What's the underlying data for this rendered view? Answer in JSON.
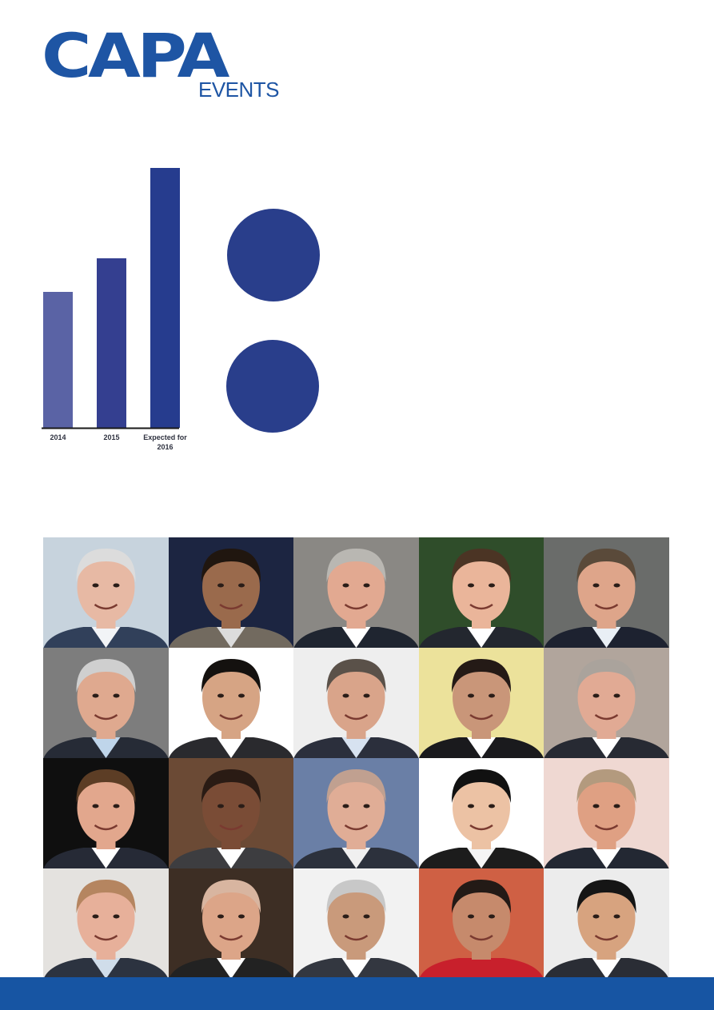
{
  "logo": {
    "main": "CAPA",
    "sub": "EVENTS",
    "color": "#1e55a4"
  },
  "chart_data": {
    "type": "bar",
    "categories": [
      "2014",
      "2015",
      "Expected for 2016"
    ],
    "category_lines": [
      [
        "2014"
      ],
      [
        "2015"
      ],
      [
        "Expected for",
        "2016"
      ]
    ],
    "values": [
      170,
      212,
      325
    ],
    "colors": [
      "#5a63a5",
      "#343f90",
      "#263c8e"
    ],
    "title": "",
    "xlabel": "",
    "ylabel": ""
  },
  "circles": {
    "color": "#293e8b"
  },
  "portraits": [
    {
      "bg": "#c7d3dd",
      "skin": "#e7b9a4",
      "hair": "#dcdcdc",
      "suit": "#31405a",
      "shirt": "#f2f4f7"
    },
    {
      "bg": "#1c2541",
      "skin": "#9a6a4c",
      "hair": "#20160f",
      "suit": "#726a5f",
      "shirt": "#dcdcdc"
    },
    {
      "bg": "#8a8884",
      "skin": "#e2a991",
      "hair": "#b9b7b2",
      "suit": "#1f2530",
      "shirt": "#ffffff"
    },
    {
      "bg": "#2f4d2a",
      "skin": "#eab59a",
      "hair": "#4b3424",
      "suit": "#23272f",
      "shirt": "#ffffff"
    },
    {
      "bg": "#6a6c6a",
      "skin": "#dea58a",
      "hair": "#5a4a3a",
      "suit": "#1d2230",
      "shirt": "#e9eff5"
    },
    {
      "bg": "#7d7d7d",
      "skin": "#dfa98f",
      "hair": "#cfcfcf",
      "suit": "#262b36",
      "shirt": "#bfd5ea"
    },
    {
      "bg": "#ffffff",
      "skin": "#d6a484",
      "hair": "#14110f",
      "suit": "#2a2a2e",
      "shirt": "#ffffff"
    },
    {
      "bg": "#eeeeee",
      "skin": "#d9a48a",
      "hair": "#5a5149",
      "suit": "#2b2f3c",
      "shirt": "#d7e2f0"
    },
    {
      "bg": "#ece29b",
      "skin": "#c99679",
      "hair": "#241a16",
      "suit": "#1a1a1d",
      "shirt": "#ffffff"
    },
    {
      "bg": "#b1a59c",
      "skin": "#e1aa94",
      "hair": "#aaa39c",
      "suit": "#272a33",
      "shirt": "#ffffff"
    },
    {
      "bg": "#0f0f0f",
      "skin": "#e2a78d",
      "hair": "#5c3d25",
      "suit": "#262a36",
      "shirt": "#ffffff"
    },
    {
      "bg": "#6b4a35",
      "skin": "#7a4c36",
      "hair": "#2a1b14",
      "suit": "#3d3d40",
      "shirt": "#ffffff"
    },
    {
      "bg": "#6a7fa6",
      "skin": "#e0ad96",
      "hair": "#c0a090",
      "suit": "#2c313c",
      "shirt": "#f0f0f0"
    },
    {
      "bg": "#ffffff",
      "skin": "#ecc2a4",
      "hair": "#111111",
      "suit": "#1c1c1c",
      "shirt": "#f5f5f5"
    },
    {
      "bg": "#efd8d2",
      "skin": "#dfa083",
      "hair": "#b39a7e",
      "suit": "#232833",
      "shirt": "#ffffff"
    },
    {
      "bg": "#e4e2df",
      "skin": "#e7b09a",
      "hair": "#b58560",
      "suit": "#2c3340",
      "shirt": "#d0ddea"
    },
    {
      "bg": "#3d2e24",
      "skin": "#dca588",
      "hair": "#d8b5a0",
      "suit": "#222",
      "shirt": "#ffffff"
    },
    {
      "bg": "#f2f2f2",
      "skin": "#c99a7b",
      "hair": "#c8c8c8",
      "suit": "#333740",
      "shirt": "#ffffff"
    },
    {
      "bg": "#cf6044",
      "skin": "#c68a6c",
      "hair": "#231a16",
      "suit": "#c8202c",
      "shirt": "#c8202c"
    },
    {
      "bg": "#ececec",
      "skin": "#d7a37f",
      "hair": "#151515",
      "suit": "#2a2d35",
      "shirt": "#ffffff"
    }
  ],
  "footer": {
    "color": "#1755a3"
  }
}
